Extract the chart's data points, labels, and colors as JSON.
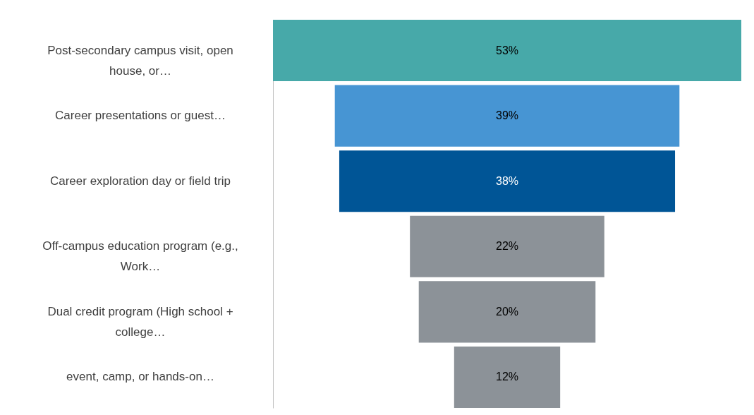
{
  "chart_data": {
    "type": "other",
    "categories": [
      "Post-secondary campus visit, open house, or…",
      "Career presentations or guest…",
      "Career exploration day or field trip",
      "Off-campus education program (e.g., Work…",
      "Dual credit program (High school + college…",
      "event, camp, or hands-on…"
    ],
    "values": [
      53,
      39,
      38,
      22,
      20,
      12
    ],
    "colors": [
      "#47a9a9",
      "#4795d3",
      "#005596",
      "#8c9298",
      "#8c9298",
      "#8c9298"
    ],
    "value_labels": [
      "53%",
      "39%",
      "38%",
      "22%",
      "20%",
      "12%"
    ]
  }
}
